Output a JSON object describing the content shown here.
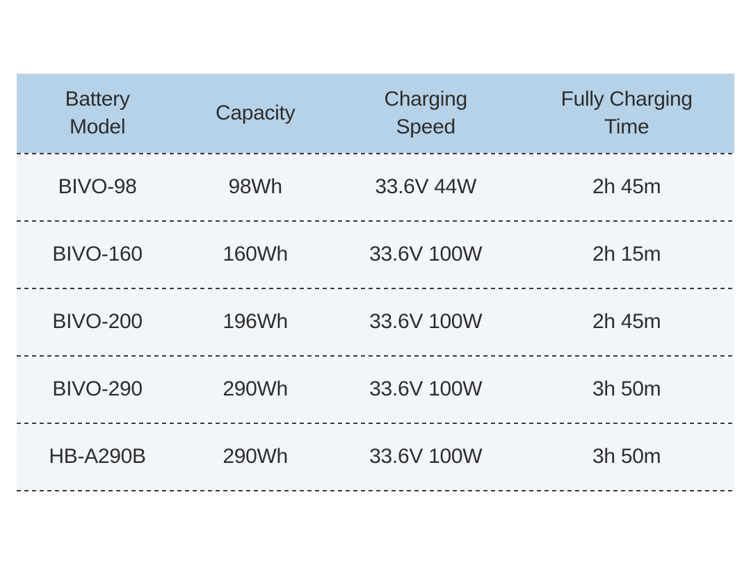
{
  "page": {
    "background_color": "#ffffff"
  },
  "chart_data": {
    "type": "table",
    "columns": [
      "Battery\nModel",
      "Capacity",
      "Charging\nSpeed",
      "Fully Charging\nTime"
    ],
    "rows": [
      [
        "BIVO-98",
        "98Wh",
        "33.6V 44W",
        "2h 45m"
      ],
      [
        "BIVO-160",
        "160Wh",
        "33.6V 100W",
        "2h 15m"
      ],
      [
        "BIVO-200",
        "196Wh",
        "33.6V 100W",
        "2h 45m"
      ],
      [
        "BIVO-290",
        "290Wh",
        "33.6V 100W",
        "3h 50m"
      ],
      [
        "HB-A290B",
        "290Wh",
        "33.6V 100W",
        "3h 50m"
      ]
    ],
    "style": {
      "header_background": "#b6d2e8",
      "row_background": "#f2f6fa",
      "text_color": "#2e2d2c",
      "separator_color": "#3a3a3a",
      "separator_style": "dashed"
    },
    "layout": {
      "grid": "horizontal dashed separators only",
      "legend_position": "none"
    }
  }
}
